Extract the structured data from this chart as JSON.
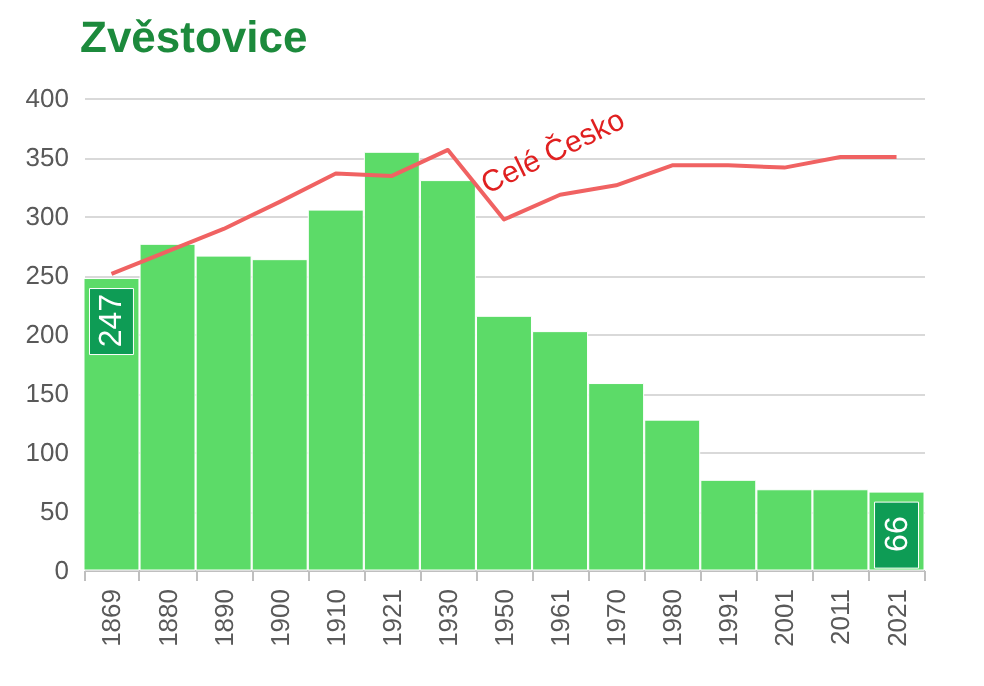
{
  "chart_data": {
    "type": "bar",
    "title": "Zvěstovice",
    "categories": [
      "1869",
      "1880",
      "1890",
      "1900",
      "1910",
      "1921",
      "1930",
      "1950",
      "1961",
      "1970",
      "1980",
      "1991",
      "2001",
      "2011",
      "2021"
    ],
    "series": [
      {
        "color": "#5cdb68",
        "values": [
          247,
          276,
          266,
          263,
          305,
          354,
          330,
          215,
          202,
          158,
          127,
          76,
          68,
          68,
          66
        ],
        "value_labels": [
          "247",
          null,
          null,
          null,
          null,
          null,
          null,
          null,
          null,
          null,
          null,
          null,
          null,
          null,
          "66"
        ]
      },
      {
        "type": "line",
        "name": "Celé Česko",
        "color": "#f06262",
        "values": [
          251,
          270,
          289,
          312,
          336,
          334,
          356,
          297,
          318,
          326,
          343,
          343,
          341,
          350,
          350
        ]
      }
    ],
    "ylim": [
      0,
      400
    ],
    "yticks": [
      0,
      50,
      100,
      150,
      200,
      250,
      300,
      350,
      400
    ],
    "grid": "y"
  }
}
